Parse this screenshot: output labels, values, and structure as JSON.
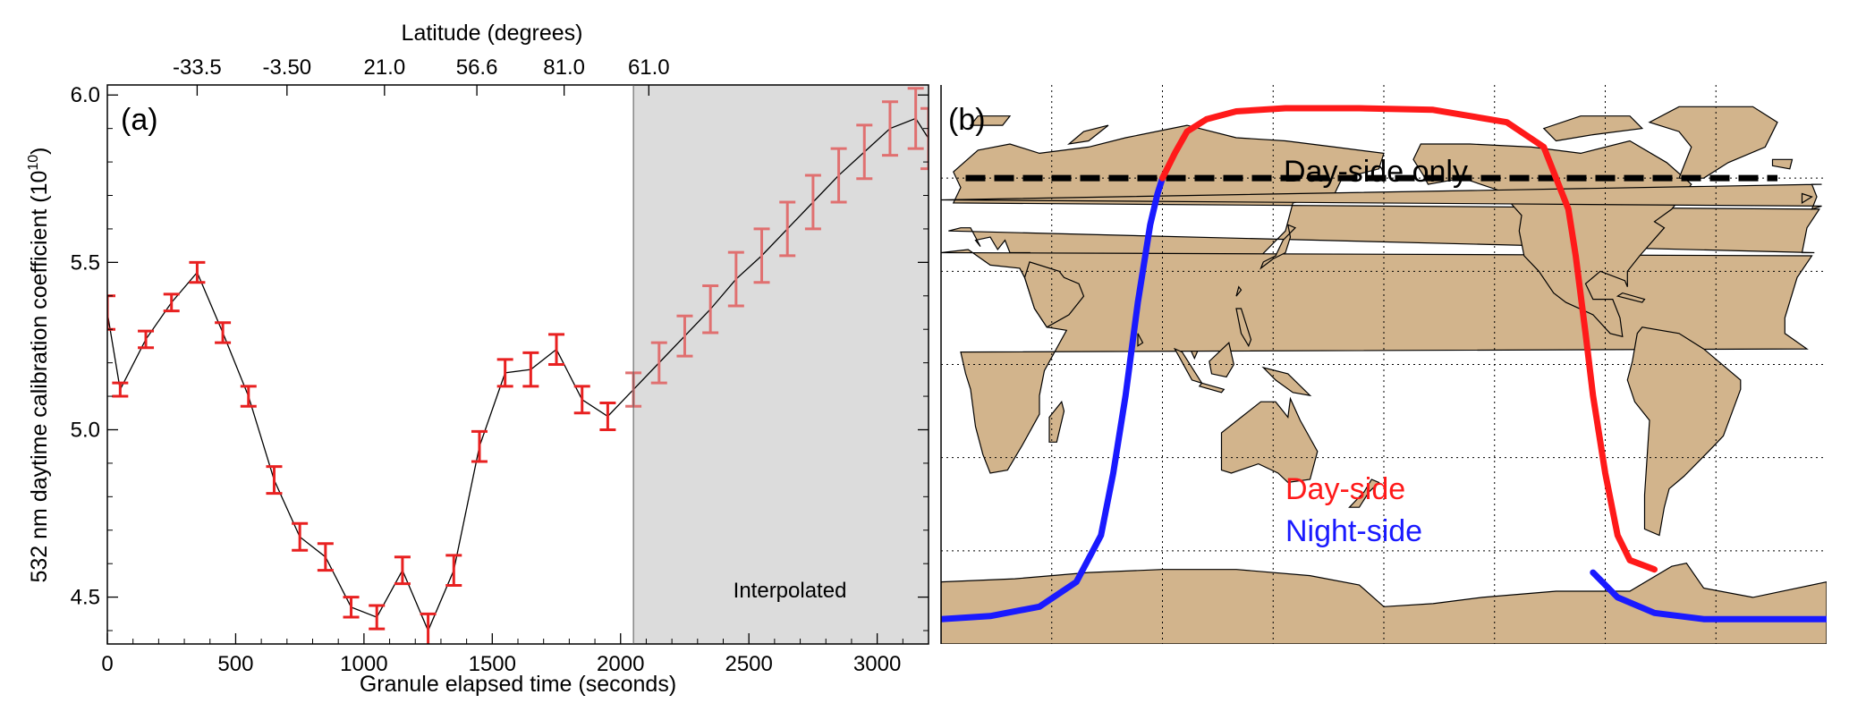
{
  "chart_data": [
    {
      "panel": "(a)",
      "type": "line",
      "xlabel": "Granule elapsed time (seconds)",
      "ylabel": "532 nm daytime calibration coefficient (10",
      "ylabel_exponent": "10",
      "ylabel_close": ")",
      "top_axis_label": "Latitude (degrees)",
      "top_ticks": [
        {
          "x": 350,
          "label": "-33.5"
        },
        {
          "x": 700,
          "label": "-3.50"
        },
        {
          "x": 1080,
          "label": "21.0"
        },
        {
          "x": 1440,
          "label": "56.6"
        },
        {
          "x": 1780,
          "label": "81.0"
        },
        {
          "x": 2110,
          "label": "61.0"
        }
      ],
      "xlim": [
        0,
        3200
      ],
      "ylim": [
        4.36,
        6.03
      ],
      "xticks": [
        0,
        500,
        1000,
        1500,
        2000,
        2500,
        3000
      ],
      "yticks": [
        4.5,
        5.0,
        5.5,
        6.0
      ],
      "ytick_labels": [
        "4.5",
        "5.0",
        "5.5",
        "6.0"
      ],
      "shaded_region": {
        "x_start": 2050,
        "x_end": 3200,
        "label": "Interpolated",
        "color": "#dcdcdc"
      },
      "line_color": "#000000",
      "errorbar_color_measured": "#e82020",
      "errorbar_color_interpolated": "#e07070",
      "series": [
        {
          "x": [
            0,
            50,
            150,
            250,
            350,
            450,
            550,
            650,
            750,
            850,
            950,
            1050,
            1150,
            1250,
            1350,
            1450,
            1550,
            1650,
            1750,
            1850,
            1950,
            2050,
            2150,
            2250,
            2350,
            2450,
            2550,
            2650,
            2750,
            2850,
            2950,
            3050,
            3150,
            3200
          ],
          "y": [
            5.35,
            5.12,
            5.27,
            5.38,
            5.47,
            5.29,
            5.1,
            4.85,
            4.68,
            4.62,
            4.47,
            4.44,
            4.58,
            4.4,
            4.58,
            4.95,
            5.17,
            5.18,
            5.24,
            5.09,
            5.04,
            5.12,
            5.2,
            5.28,
            5.36,
            5.45,
            5.52,
            5.6,
            5.68,
            5.76,
            5.83,
            5.9,
            5.93,
            5.87
          ],
          "err": [
            0.05,
            0.02,
            0.025,
            0.025,
            0.03,
            0.03,
            0.03,
            0.04,
            0.04,
            0.04,
            0.03,
            0.035,
            0.04,
            0.05,
            0.045,
            0.045,
            0.04,
            0.05,
            0.045,
            0.04,
            0.04,
            0.05,
            0.06,
            0.06,
            0.07,
            0.08,
            0.08,
            0.08,
            0.08,
            0.08,
            0.08,
            0.08,
            0.09,
            0.09
          ]
        }
      ]
    },
    {
      "panel": "(b)",
      "type": "map",
      "lon_range": [
        0,
        360
      ],
      "lat_range": [
        -90,
        90
      ],
      "land_color": "#d2b48c",
      "ocean_color": "#ffffff",
      "grid_lon_step": 45,
      "grid_lat_step": 30,
      "day_only_latitude": 60,
      "label_day_only": "Day-side  only",
      "legend": [
        {
          "label": "Day-side",
          "color": "#ff1a1a"
        },
        {
          "label": "Night-side",
          "color": "#1a1aff"
        }
      ],
      "day_track": {
        "lon": [
          90,
          95,
          100,
          108,
          120,
          140,
          170,
          200,
          230,
          245,
          255,
          258,
          262,
          265,
          270,
          275,
          280,
          290
        ],
        "lat": [
          60,
          68,
          75,
          79,
          81.5,
          82.5,
          82.5,
          82,
          78,
          70,
          50,
          35,
          10,
          -10,
          -35,
          -55,
          -63,
          -66
        ]
      },
      "night_tracks": [
        {
          "lon": [
            0,
            20,
            40,
            55,
            65,
            70,
            75,
            80,
            85,
            88,
            90
          ],
          "lat": [
            -82,
            -81,
            -78,
            -70,
            -55,
            -35,
            -10,
            20,
            45,
            55,
            60
          ]
        },
        {
          "lon": [
            265,
            275,
            290,
            310,
            330,
            360
          ],
          "lat": [
            -67,
            -75,
            -80,
            -82,
            -82,
            -82
          ]
        }
      ]
    }
  ]
}
